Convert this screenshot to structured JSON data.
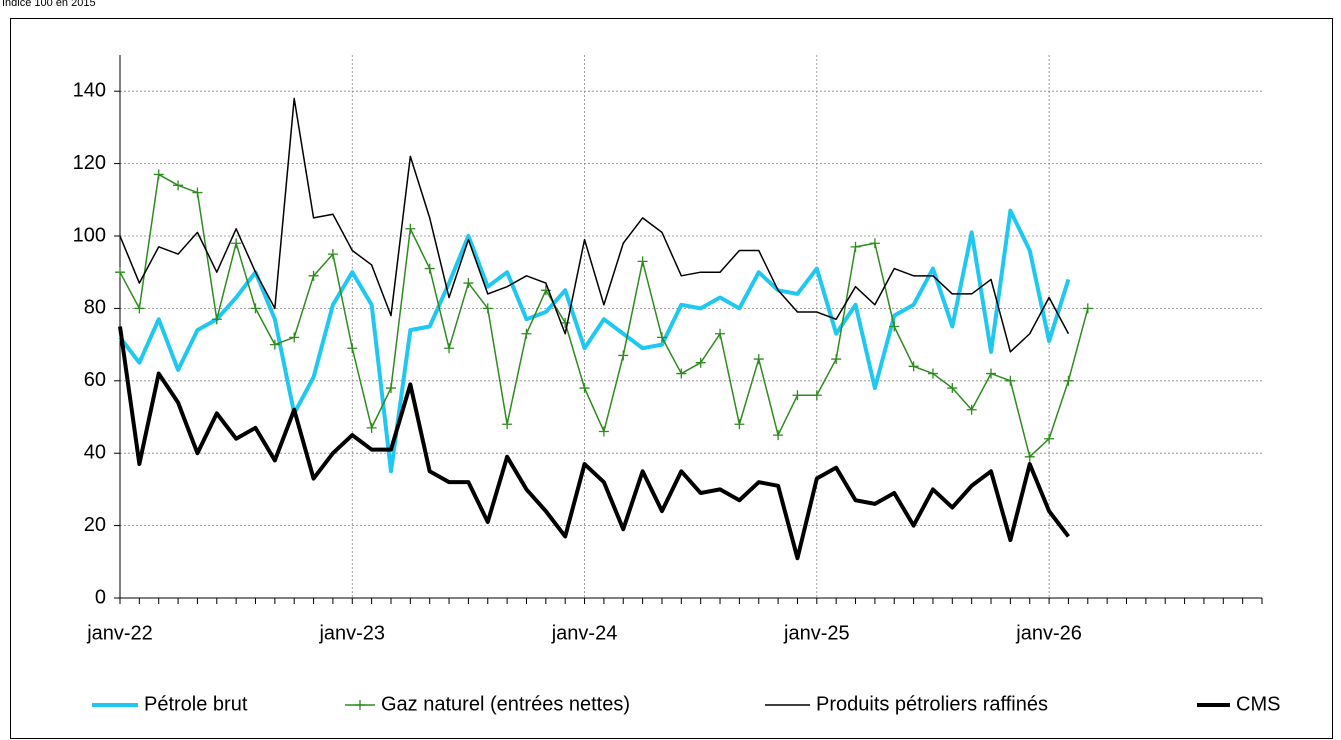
{
  "chart_data": {
    "type": "line",
    "subtitle": "Indice 100 en 2015",
    "categories": [
      "janv-22",
      null,
      null,
      null,
      null,
      null,
      null,
      null,
      null,
      null,
      null,
      null,
      "janv-23",
      null,
      null,
      null,
      null,
      null,
      null,
      null,
      null,
      null,
      null,
      null,
      "janv-24",
      null,
      null,
      null,
      null,
      null,
      null,
      null,
      null,
      null,
      null,
      null,
      "janv-25",
      null,
      null,
      null,
      null,
      null,
      null,
      null,
      null,
      null,
      null,
      null,
      "janv-26",
      null,
      null,
      null,
      null,
      null,
      null,
      null,
      null,
      null,
      null,
      null
    ],
    "series": [
      {
        "name": "Pétrole brut",
        "color": "#1ec8f0",
        "width": 4,
        "marker": "none",
        "values": [
          72,
          65,
          77,
          63,
          74,
          77,
          83,
          90,
          77,
          51,
          61,
          81,
          90,
          81,
          35,
          74,
          75,
          87,
          100,
          86,
          90,
          77,
          79,
          85,
          69,
          77,
          73,
          69,
          70,
          81,
          80,
          83,
          80,
          90,
          85,
          84,
          91,
          73,
          81,
          58,
          78,
          81,
          91,
          75,
          101,
          68,
          107,
          96,
          71,
          88,
          null,
          null,
          null,
          null,
          null,
          null,
          null,
          null,
          null,
          null
        ]
      },
      {
        "name": "Gaz naturel (entrées nettes)",
        "color": "#2e8b1e",
        "width": 1.5,
        "marker": "plus",
        "values": [
          90,
          80,
          117,
          114,
          112,
          77,
          98,
          80,
          70,
          72,
          89,
          95,
          69,
          47,
          58,
          102,
          91,
          69,
          87,
          80,
          48,
          73,
          85,
          76,
          58,
          46,
          67,
          93,
          72,
          62,
          65,
          73,
          48,
          66,
          45,
          56,
          56,
          66,
          97,
          98,
          75,
          64,
          62,
          58,
          52,
          62,
          60,
          39,
          44,
          60,
          80,
          null,
          null,
          null,
          null,
          null,
          null,
          null,
          null,
          null
        ]
      },
      {
        "name": "Produits pétroliers raffinés",
        "color": "#000000",
        "width": 1.5,
        "marker": "none",
        "values": [
          100,
          87,
          97,
          95,
          101,
          90,
          102,
          90,
          80,
          138,
          105,
          106,
          96,
          92,
          78,
          122,
          105,
          83,
          99,
          84,
          86,
          89,
          87,
          73,
          99,
          81,
          98,
          105,
          101,
          89,
          90,
          90,
          96,
          96,
          85,
          79,
          79,
          77,
          86,
          81,
          91,
          89,
          89,
          84,
          84,
          88,
          68,
          73,
          83,
          73,
          null,
          null,
          null,
          null,
          null,
          null,
          null,
          null,
          null,
          null
        ]
      },
      {
        "name": "CMS",
        "color": "#000000",
        "width": 4,
        "marker": "none",
        "values": [
          75,
          37,
          62,
          54,
          40,
          51,
          44,
          47,
          38,
          52,
          33,
          40,
          45,
          41,
          41,
          59,
          35,
          32,
          32,
          21,
          39,
          30,
          24,
          17,
          37,
          32,
          19,
          35,
          24,
          35,
          29,
          30,
          27,
          32,
          31,
          11,
          33,
          36,
          27,
          26,
          29,
          20,
          30,
          25,
          31,
          35,
          16,
          37,
          24,
          17,
          null,
          null,
          null,
          null,
          null,
          null,
          null,
          null,
          null,
          null
        ]
      }
    ],
    "ylim": [
      0,
      150
    ],
    "yticks": [
      0,
      20,
      40,
      60,
      80,
      100,
      120,
      140
    ],
    "grid": true,
    "legend": "bottom"
  }
}
